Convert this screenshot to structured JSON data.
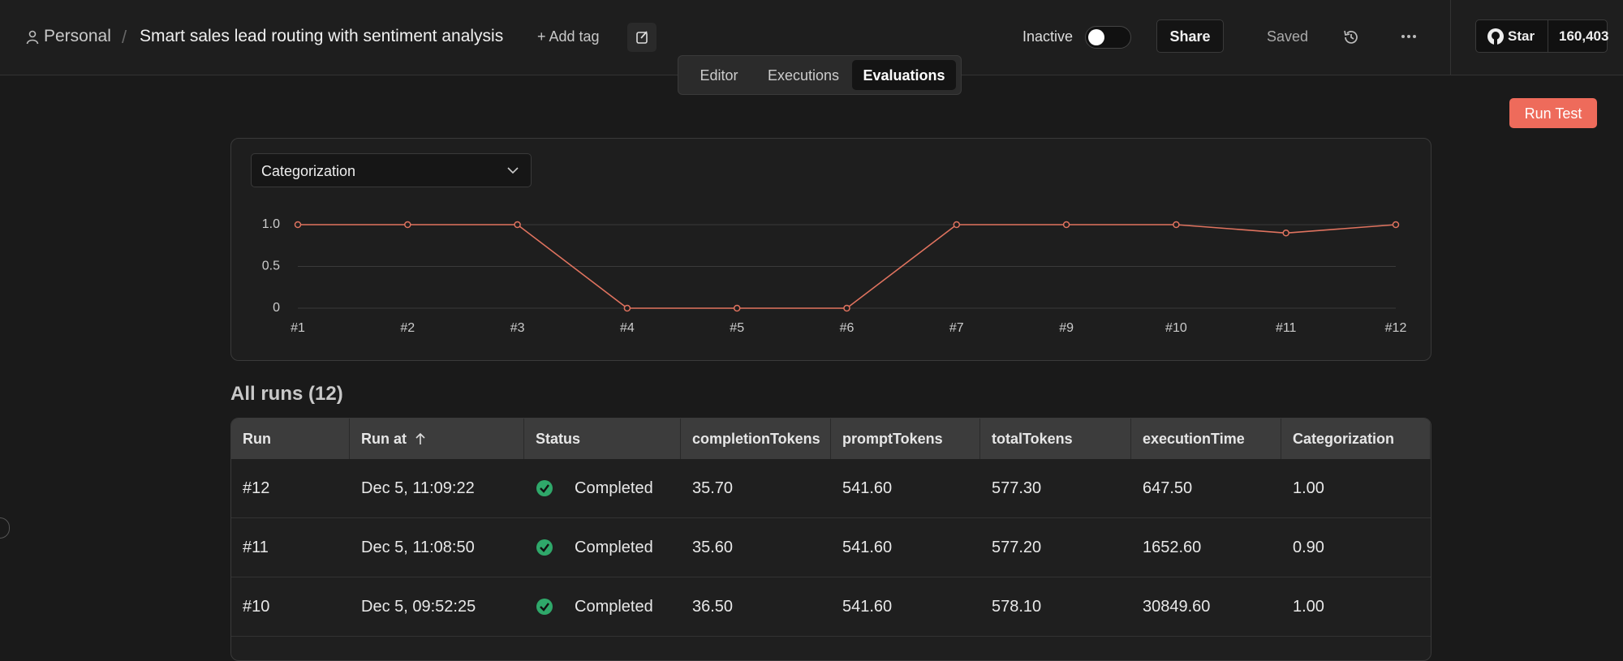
{
  "header": {
    "project": "Personal",
    "separator": "/",
    "title": "Smart sales lead routing with sentiment analysis",
    "add_tag": "+ Add tag",
    "status": "Inactive",
    "share": "Share",
    "saved": "Saved",
    "star": "Star",
    "star_count": "160,403"
  },
  "tabs": [
    "Editor",
    "Executions",
    "Evaluations"
  ],
  "run_test": "Run Test",
  "chart_data": {
    "type": "line",
    "selected_metric": "Categorization",
    "categories": [
      "#1",
      "#2",
      "#3",
      "#4",
      "#5",
      "#6",
      "#7",
      "#9",
      "#10",
      "#11",
      "#12"
    ],
    "values": [
      1,
      1,
      1,
      0,
      0,
      0,
      1,
      1,
      1,
      0.9,
      1
    ],
    "color": "#e0735f",
    "ylim": [
      0,
      1
    ],
    "yticks": [
      0,
      0.5,
      {
        "value": 1,
        "label": "1.0"
      }
    ],
    "grid": true
  },
  "runs_title": "All runs (12)",
  "table": {
    "columns": [
      "Run",
      "Run at",
      "Status",
      "completionTokens",
      "promptTokens",
      "totalTokens",
      "executionTime",
      "Categorization"
    ],
    "rows": [
      [
        "#12",
        "Dec 5, 11:09:22",
        "Completed",
        "35.70",
        "541.60",
        "577.30",
        "647.50",
        "1.00"
      ],
      [
        "#11",
        "Dec 5, 11:08:50",
        "Completed",
        "35.60",
        "541.60",
        "577.20",
        "1652.60",
        "0.90"
      ],
      [
        "#10",
        "Dec 5, 09:52:25",
        "Completed",
        "36.50",
        "541.60",
        "578.10",
        "30849.60",
        "1.00"
      ]
    ]
  }
}
